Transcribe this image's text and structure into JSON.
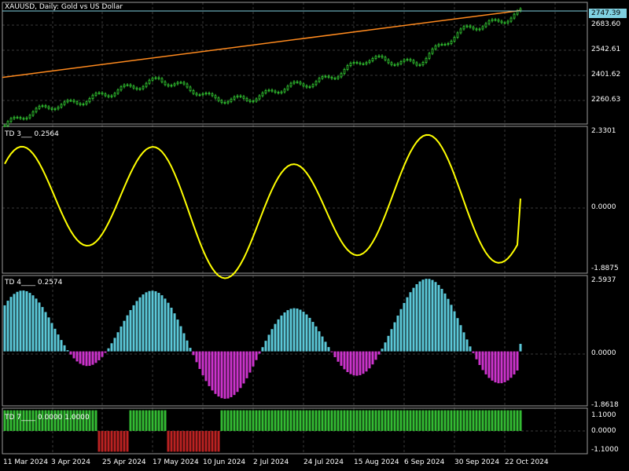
{
  "title": "XAUUSD, Daily:  Gold vs US Dollar",
  "colors": {
    "background": "#000000",
    "grid": "#3a3a3a",
    "bull_candle": "#33cc33",
    "trendline": "#ff8a1e",
    "price_line": "#7fd0e0",
    "td3_line": "#ffff00",
    "td4_positive": "#5bc8d8",
    "td4_negative": "#cc33cc",
    "td7_positive": "#33bb33",
    "td7_negative": "#bb2222",
    "text": "#ffffff"
  },
  "main_panel": {
    "price_badge": "2747.39",
    "y_labels": [
      "2683.60",
      "2542.61",
      "2401.62",
      "2260.63"
    ]
  },
  "td3_panel": {
    "label": "TD 3___ 0.2564",
    "y_labels": [
      "2.3301",
      "0.0000",
      "-1.8875"
    ]
  },
  "td4_panel": {
    "label": "TD 4____ 0.2574",
    "y_labels": [
      "2.5937",
      "0.0000",
      "-1.8618"
    ]
  },
  "td7_panel": {
    "label": "TD 7____ 0.0000 1.0000",
    "y_labels": [
      "1.1000",
      "0.0000",
      "-1.1000"
    ]
  },
  "x_labels": [
    "11 Mar 2024",
    "3 Apr 2024",
    "25 Apr 2024",
    "17 May 2024",
    "10 Jun 2024",
    "2 Jul 2024",
    "24 Jul 2024",
    "15 Aug 2024",
    "6 Sep 2024",
    "30 Sep 2024",
    "22 Oct 2024"
  ],
  "chart_data": [
    {
      "type": "candlestick",
      "title": "XAUUSD, Daily:  Gold vs US Dollar",
      "ylim": [
        2190,
        2790
      ],
      "x_dates": [
        "11 Mar 2024",
        "3 Apr 2024",
        "25 Apr 2024",
        "17 May 2024",
        "10 Jun 2024",
        "2 Jul 2024",
        "24 Jul 2024",
        "15 Aug 2024",
        "6 Sep 2024",
        "30 Sep 2024",
        "22 Oct 2024"
      ],
      "close_by_date": [
        2182,
        2290,
        2330,
        2420,
        2310,
        2330,
        2400,
        2500,
        2500,
        2660,
        2740
      ],
      "last_price": 2747.39,
      "trendline": {
        "start": 2420,
        "end": 2750
      }
    },
    {
      "type": "line",
      "name": "TD 3",
      "last_value": 0.2564,
      "ylim": [
        -1.8875,
        2.3301
      ]
    },
    {
      "type": "bar",
      "name": "TD 4",
      "last_value": 0.2574,
      "ylim": [
        -1.8618,
        2.5937
      ]
    },
    {
      "type": "bar",
      "name": "TD 7",
      "values_label": "0.0000 1.0000",
      "ylim": [
        -1.1,
        1.1
      ]
    }
  ]
}
